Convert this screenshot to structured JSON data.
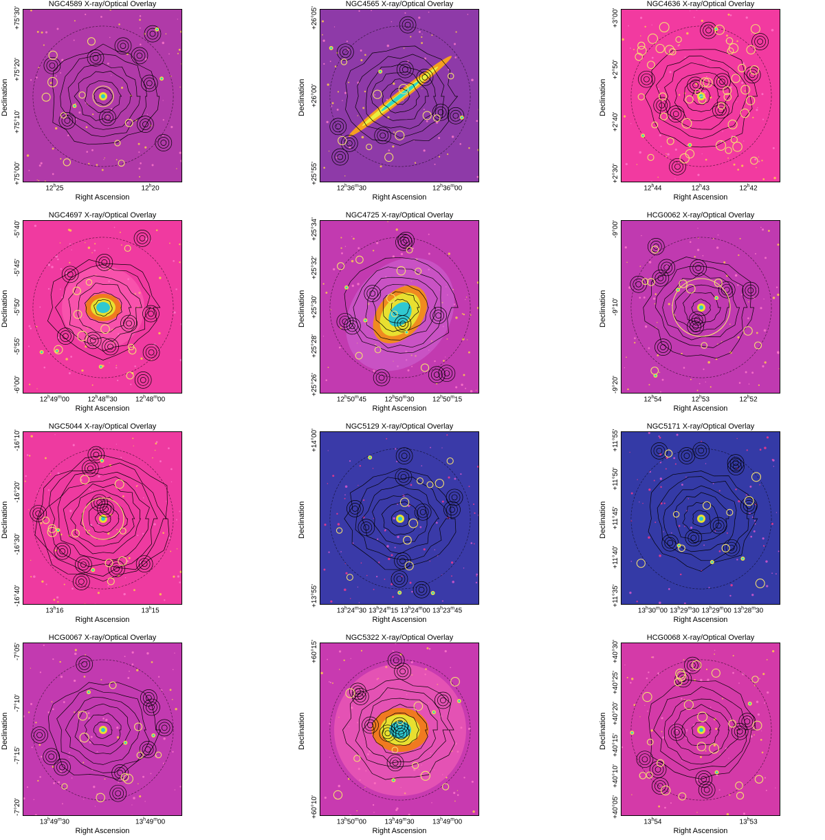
{
  "panels": [
    {
      "title": "NGC4589 X-ray/Optical Overlay",
      "bg": "#b03aa8",
      "variant": "center-small",
      "ra_ticks": [
        "12h25",
        "12h20"
      ],
      "dec_ticks": [
        "+75°00'",
        "+75°10'",
        "+75°20'",
        "+75°30'"
      ]
    },
    {
      "title": "NGC4565 X-ray/Optical Overlay",
      "bg": "#8e3aa8",
      "variant": "edge-on",
      "ra_ticks": [
        "12h36m30",
        "12h36m00"
      ],
      "dec_ticks": [
        "+25°55'",
        "+26°00'",
        "+26°05'"
      ]
    },
    {
      "title": "NGC4636 X-ray/Optical Overlay",
      "bg": "#f23aa0",
      "variant": "many-circles",
      "ra_ticks": [
        "12h44",
        "12h43",
        "12h42"
      ],
      "dec_ticks": [
        "+2°30'",
        "+2°40'",
        "+2°50'",
        "+3°00'"
      ]
    },
    {
      "title": "NGC4697 X-ray/Optical Overlay",
      "bg": "#f03aa0",
      "variant": "bright-center",
      "ra_ticks": [
        "12h49m00",
        "12h48m30",
        "12h48m00"
      ],
      "dec_ticks": [
        "-6°00'",
        "-5°55'",
        "-5°50'",
        "-5°45'",
        "-5°40'"
      ]
    },
    {
      "title": "NGC4725 X-ray/Optical Overlay",
      "bg": "#c23ab0",
      "variant": "large-galaxy",
      "ra_ticks": [
        "12h50m45",
        "12h50m30",
        "12h50m15"
      ],
      "dec_ticks": [
        "+25°26'",
        "+25°28'",
        "+25°30'",
        "+25°32'",
        "+25°34'"
      ]
    },
    {
      "title": "HCG0062 X-ray/Optical Overlay",
      "bg": "#c03ab0",
      "variant": "big-ring",
      "ra_ticks": [
        "12h54",
        "12h53",
        "12h52"
      ],
      "dec_ticks": [
        "-9°20'",
        "-9°10'",
        "-9°00'"
      ]
    },
    {
      "title": "NGC5044 X-ray/Optical Overlay",
      "bg": "#ee3aa0",
      "variant": "cluster-contours",
      "ra_ticks": [
        "13h16",
        "13h15"
      ],
      "dec_ticks": [
        "-16°40'",
        "-16°30'",
        "-16°20'",
        "-16°10'"
      ]
    },
    {
      "title": "NGC5129 X-ray/Optical Overlay",
      "bg": "#3a3aa8",
      "variant": "blue-field",
      "ra_ticks": [
        "13h24m30",
        "13h24m15",
        "13h24m00",
        "13h23m45"
      ],
      "dec_ticks": [
        "+13°55'",
        "+14°00'"
      ]
    },
    {
      "title": "NGC5171 X-ray/Optical Overlay",
      "bg": "#343aa6",
      "variant": "blue-group",
      "ra_ticks": [
        "13h30m00",
        "13h29m30",
        "13h29m00",
        "13h28m30"
      ],
      "dec_ticks": [
        "+11°35'",
        "+11°40'",
        "+11°45'",
        "+11°50'",
        "+11°55'"
      ]
    },
    {
      "title": "HCG0067 X-ray/Optical Overlay",
      "bg": "#c23ab0",
      "variant": "group-small",
      "ra_ticks": [
        "13h49m30",
        "13h49m00"
      ],
      "dec_ticks": [
        "-7°20'",
        "-7°15'",
        "-7°10'",
        "-7°05'"
      ]
    },
    {
      "title": "NGC5322 X-ray/Optical Overlay",
      "bg": "#c83ab0",
      "variant": "bright-center-large",
      "ra_ticks": [
        "13h50m00",
        "13h49m30",
        "13h49m00"
      ],
      "dec_ticks": [
        "+60°10'",
        "+60°15'"
      ]
    },
    {
      "title": "HCG0068 X-ray/Optical Overlay",
      "bg": "#d43aa8",
      "variant": "group-many",
      "ra_ticks": [
        "13h54",
        "13h53"
      ],
      "dec_ticks": [
        "+40°05'",
        "+40°10'",
        "+40°15'",
        "+40°20'",
        "+40°25'",
        "+40°30'"
      ]
    }
  ],
  "xlabel": "Right Ascension",
  "ylabel": "Declination"
}
